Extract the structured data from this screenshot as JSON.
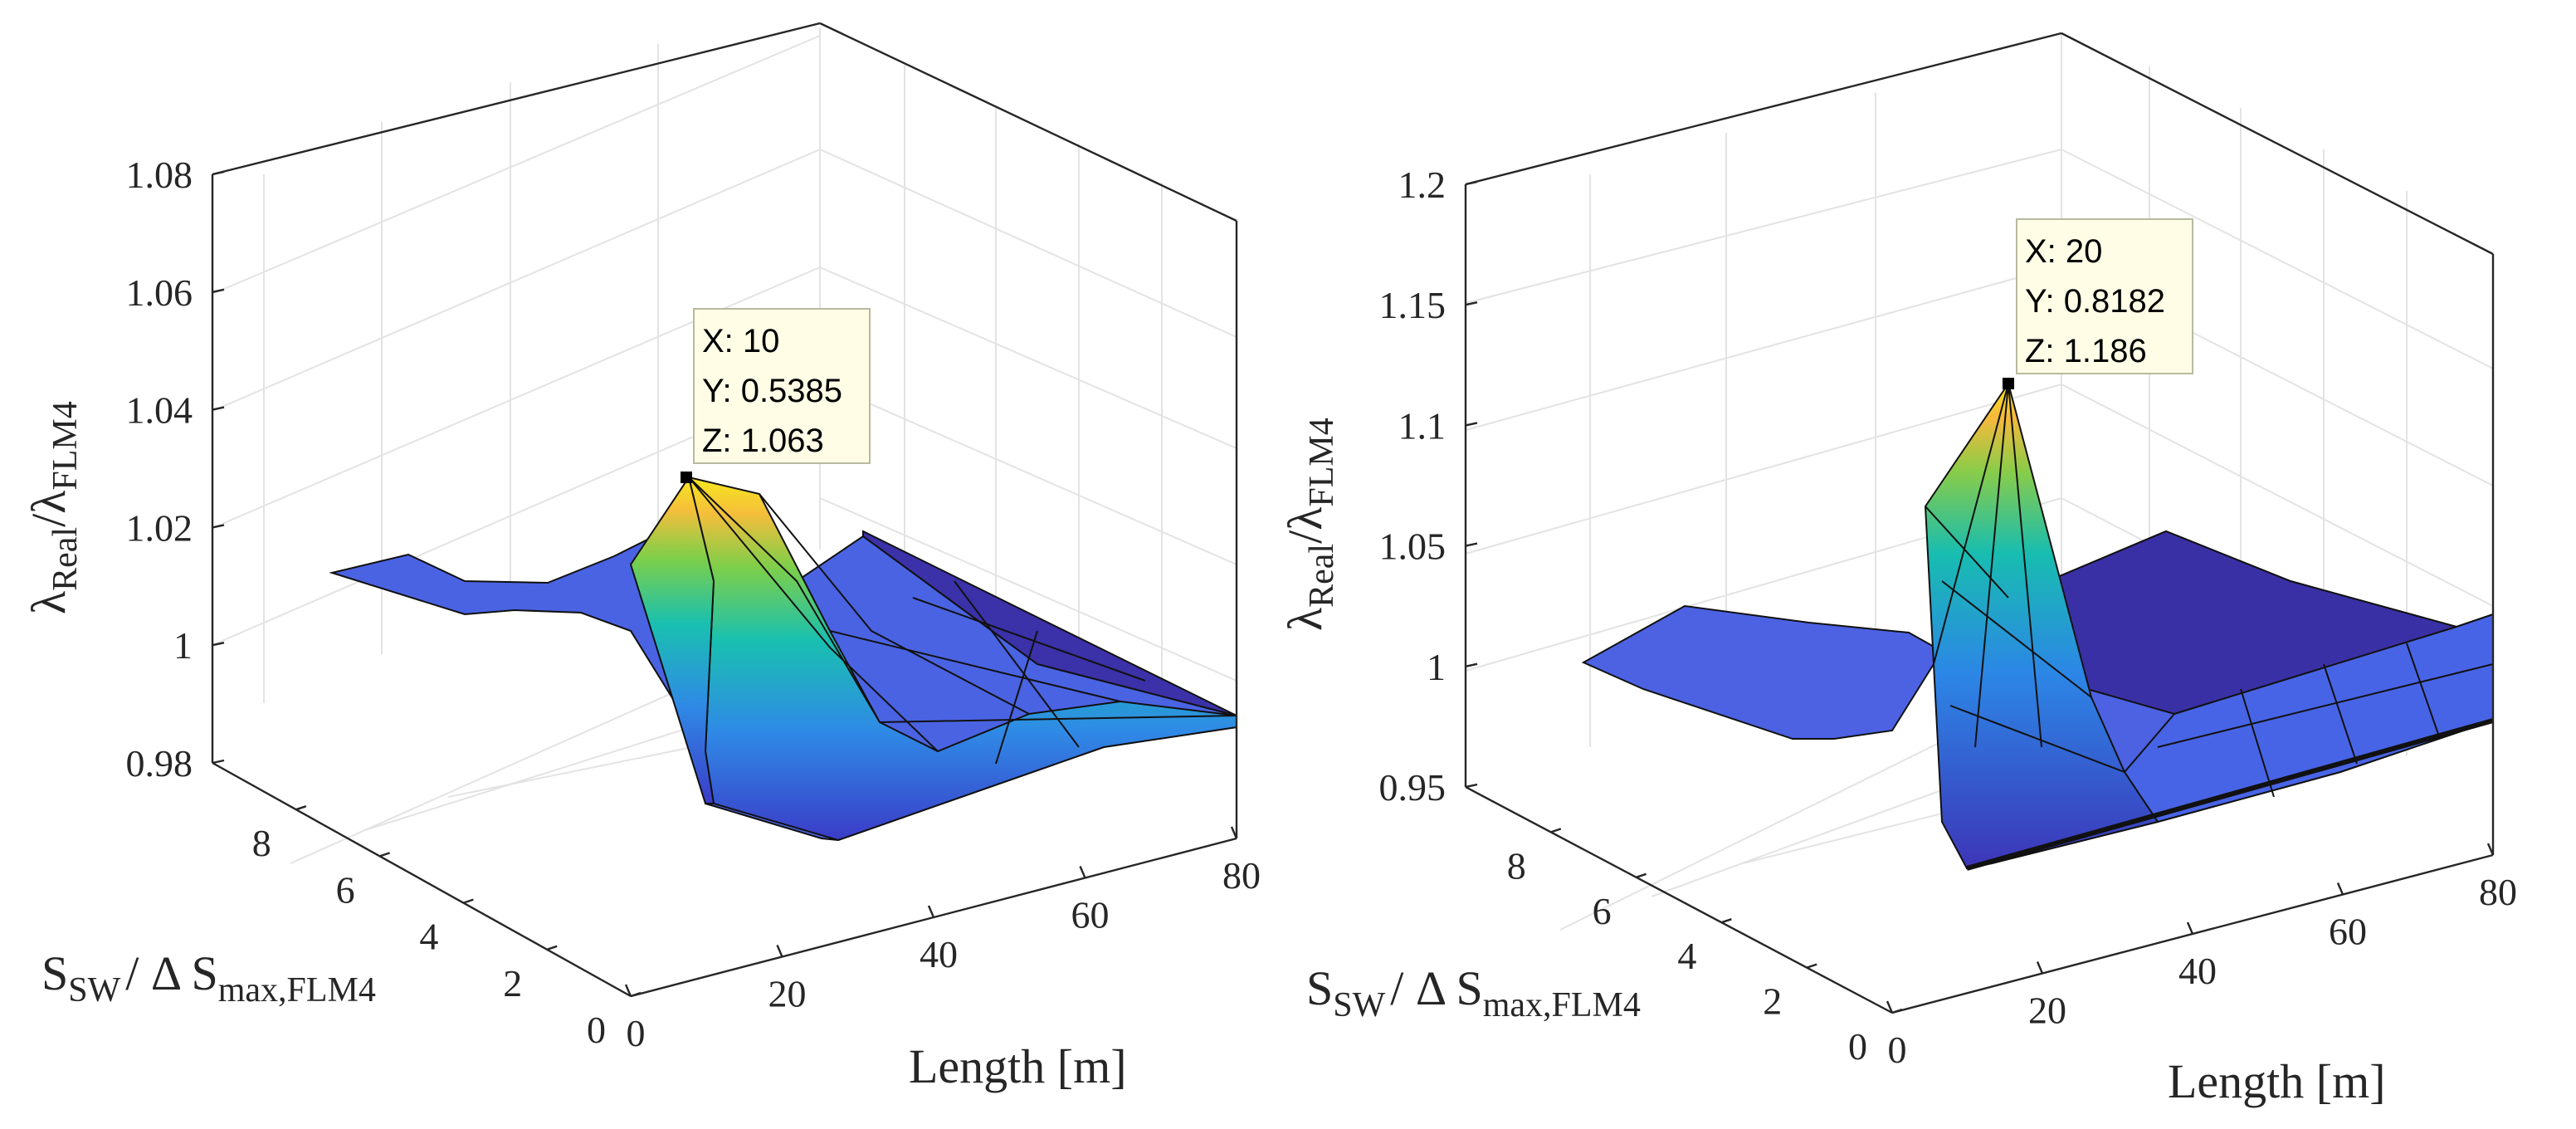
{
  "chart_data": [
    {
      "type": "surface",
      "xlabel": "Length [m]",
      "ylabel": {
        "main": "S",
        "sub1": "SW",
        "mid": "/ Δ S",
        "sub2": "max,FLM4"
      },
      "zlabel": {
        "l1": "λ",
        "s1": "Real",
        "slash": "/λ",
        "s2": "FLM4"
      },
      "xlim": [
        0,
        80
      ],
      "ylim": [
        0,
        10
      ],
      "zlim": [
        0.98,
        1.08
      ],
      "xticks": [
        "0",
        "20",
        "40",
        "60",
        "80"
      ],
      "yticks": [
        "0",
        "2",
        "4",
        "6",
        "8"
      ],
      "zticks": [
        "0.98",
        "1",
        "1.02",
        "1.04",
        "1.06",
        "1.08"
      ],
      "datatip": {
        "x": "X: 10",
        "y": "Y: 0.5385",
        "z": "Z: 1.063"
      },
      "peak": {
        "x": 10,
        "y": 0.5385,
        "z": 1.063
      }
    },
    {
      "type": "surface",
      "xlabel": "Length [m]",
      "ylabel": {
        "main": "S",
        "sub1": "SW",
        "mid": "/ Δ S",
        "sub2": "max,FLM4"
      },
      "zlabel": {
        "l1": "λ",
        "s1": "Real",
        "slash": "/λ",
        "s2": "FLM4"
      },
      "xlim": [
        0,
        80
      ],
      "ylim": [
        0,
        10
      ],
      "zlim": [
        0.95,
        1.2
      ],
      "xticks": [
        "0",
        "20",
        "40",
        "60",
        "80"
      ],
      "yticks": [
        "0",
        "2",
        "4",
        "6",
        "8"
      ],
      "zticks": [
        "0.95",
        "1",
        "1.05",
        "1.1",
        "1.15",
        "1.2"
      ],
      "datatip": {
        "x": "X: 20",
        "y": "Y: 0.8182",
        "z": "Z: 1.186"
      },
      "peak": {
        "x": 20,
        "y": 0.8182,
        "z": 1.186
      }
    }
  ]
}
